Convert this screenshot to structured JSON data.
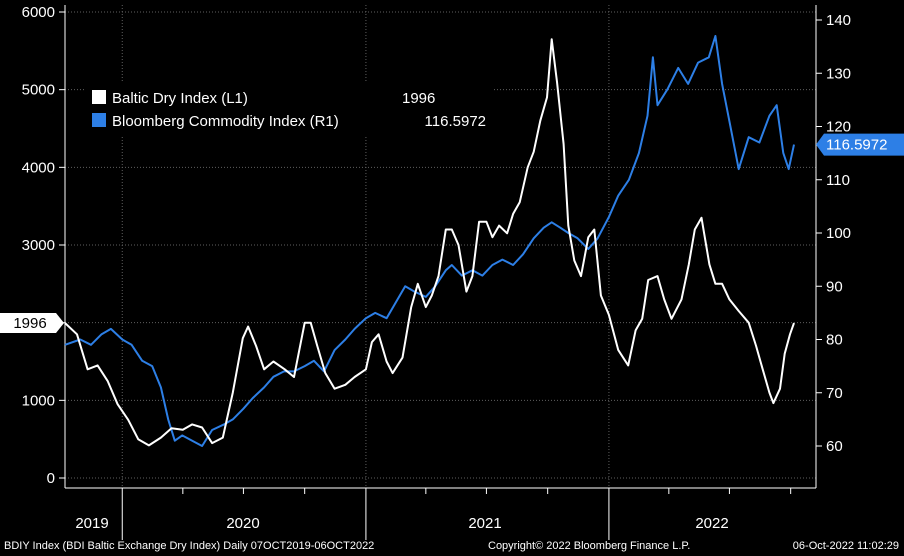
{
  "chart_data": {
    "type": "line",
    "x_range": [
      "2019-10-07",
      "2022-10-06"
    ],
    "y_left": {
      "ticks": [
        "0",
        "1000",
        "2000",
        "3000",
        "4000",
        "5000",
        "6000"
      ],
      "ylim": [
        0,
        6000
      ]
    },
    "y_right": {
      "ticks": [
        "60",
        "70",
        "80",
        "90",
        "100",
        "110",
        "120",
        "130",
        "140"
      ],
      "ylim": [
        53,
        141
      ]
    },
    "years": [
      "2019",
      "2020",
      "2021",
      "2022"
    ],
    "grid": true,
    "legend_position": "top-left",
    "series": [
      {
        "name": "Baltic Dry Index (L1)",
        "last_label": "1996",
        "color": "#ffffff",
        "axis": "left",
        "points": [
          [
            "2019-10-07",
            1996
          ],
          [
            "2019-10-25",
            1850
          ],
          [
            "2019-11-10",
            1400
          ],
          [
            "2019-11-25",
            1450
          ],
          [
            "2019-12-10",
            1250
          ],
          [
            "2019-12-25",
            950
          ],
          [
            "2020-01-10",
            750
          ],
          [
            "2020-01-25",
            500
          ],
          [
            "2020-02-10",
            420
          ],
          [
            "2020-02-28",
            520
          ],
          [
            "2020-03-15",
            640
          ],
          [
            "2020-04-01",
            620
          ],
          [
            "2020-04-15",
            690
          ],
          [
            "2020-04-30",
            650
          ],
          [
            "2020-05-15",
            450
          ],
          [
            "2020-05-31",
            520
          ],
          [
            "2020-06-15",
            1100
          ],
          [
            "2020-06-30",
            1800
          ],
          [
            "2020-07-08",
            1950
          ],
          [
            "2020-07-20",
            1700
          ],
          [
            "2020-08-01",
            1400
          ],
          [
            "2020-08-15",
            1500
          ],
          [
            "2020-09-01",
            1400
          ],
          [
            "2020-09-15",
            1300
          ],
          [
            "2020-10-01",
            2000
          ],
          [
            "2020-10-10",
            2000
          ],
          [
            "2020-10-20",
            1700
          ],
          [
            "2020-11-01",
            1350
          ],
          [
            "2020-11-15",
            1150
          ],
          [
            "2020-12-01",
            1200
          ],
          [
            "2020-12-15",
            1300
          ],
          [
            "2021-01-01",
            1400
          ],
          [
            "2021-01-10",
            1750
          ],
          [
            "2021-01-20",
            1850
          ],
          [
            "2021-02-01",
            1500
          ],
          [
            "2021-02-10",
            1350
          ],
          [
            "2021-02-25",
            1550
          ],
          [
            "2021-03-10",
            2200
          ],
          [
            "2021-03-20",
            2500
          ],
          [
            "2021-04-01",
            2200
          ],
          [
            "2021-04-10",
            2350
          ],
          [
            "2021-04-20",
            2600
          ],
          [
            "2021-05-01",
            3200
          ],
          [
            "2021-05-10",
            3200
          ],
          [
            "2021-05-20",
            3000
          ],
          [
            "2021-06-01",
            2400
          ],
          [
            "2021-06-10",
            2600
          ],
          [
            "2021-06-20",
            3300
          ],
          [
            "2021-07-01",
            3300
          ],
          [
            "2021-07-10",
            3100
          ],
          [
            "2021-07-20",
            3250
          ],
          [
            "2021-08-01",
            3150
          ],
          [
            "2021-08-10",
            3400
          ],
          [
            "2021-08-20",
            3550
          ],
          [
            "2021-09-01",
            4000
          ],
          [
            "2021-09-10",
            4200
          ],
          [
            "2021-09-20",
            4600
          ],
          [
            "2021-09-30",
            4900
          ],
          [
            "2021-10-07",
            5650
          ],
          [
            "2021-10-15",
            5100
          ],
          [
            "2021-10-25",
            4300
          ],
          [
            "2021-11-01",
            3250
          ],
          [
            "2021-11-10",
            2800
          ],
          [
            "2021-11-20",
            2600
          ],
          [
            "2021-12-01",
            3100
          ],
          [
            "2021-12-10",
            3200
          ],
          [
            "2021-12-20",
            2350
          ],
          [
            "2022-01-01",
            2100
          ],
          [
            "2022-01-15",
            1650
          ],
          [
            "2022-01-30",
            1450
          ],
          [
            "2022-02-10",
            1900
          ],
          [
            "2022-02-20",
            2050
          ],
          [
            "2022-03-01",
            2550
          ],
          [
            "2022-03-15",
            2600
          ],
          [
            "2022-03-25",
            2300
          ],
          [
            "2022-04-05",
            2050
          ],
          [
            "2022-04-20",
            2300
          ],
          [
            "2022-05-01",
            2750
          ],
          [
            "2022-05-10",
            3200
          ],
          [
            "2022-05-20",
            3350
          ],
          [
            "2022-06-01",
            2750
          ],
          [
            "2022-06-10",
            2500
          ],
          [
            "2022-06-20",
            2500
          ],
          [
            "2022-07-01",
            2300
          ],
          [
            "2022-07-15",
            2150
          ],
          [
            "2022-07-30",
            2000
          ],
          [
            "2022-08-10",
            1700
          ],
          [
            "2022-08-20",
            1400
          ],
          [
            "2022-08-30",
            1100
          ],
          [
            "2022-09-05",
            965
          ],
          [
            "2022-09-15",
            1150
          ],
          [
            "2022-09-22",
            1600
          ],
          [
            "2022-09-30",
            1850
          ],
          [
            "2022-10-06",
            1996
          ]
        ]
      },
      {
        "name": "Bloomberg Commodity Index (R1)",
        "last_label": "116.5972",
        "color": "#2d7fe6",
        "axis": "right",
        "points": [
          [
            "2019-10-07",
            79
          ],
          [
            "2019-10-30",
            80
          ],
          [
            "2019-11-15",
            79
          ],
          [
            "2019-12-01",
            81
          ],
          [
            "2019-12-15",
            82
          ],
          [
            "2020-01-01",
            80
          ],
          [
            "2020-01-15",
            79
          ],
          [
            "2020-01-31",
            76
          ],
          [
            "2020-02-15",
            75
          ],
          [
            "2020-02-28",
            71
          ],
          [
            "2020-03-10",
            65
          ],
          [
            "2020-03-20",
            61
          ],
          [
            "2020-03-31",
            62
          ],
          [
            "2020-04-15",
            61
          ],
          [
            "2020-04-30",
            60
          ],
          [
            "2020-05-15",
            63
          ],
          [
            "2020-06-01",
            64
          ],
          [
            "2020-06-15",
            65
          ],
          [
            "2020-07-01",
            67
          ],
          [
            "2020-07-15",
            69
          ],
          [
            "2020-08-01",
            71
          ],
          [
            "2020-08-15",
            73
          ],
          [
            "2020-08-31",
            74
          ],
          [
            "2020-09-15",
            74
          ],
          [
            "2020-10-01",
            75
          ],
          [
            "2020-10-15",
            76
          ],
          [
            "2020-10-30",
            74
          ],
          [
            "2020-11-15",
            78
          ],
          [
            "2020-12-01",
            80
          ],
          [
            "2020-12-15",
            82
          ],
          [
            "2021-01-01",
            84
          ],
          [
            "2021-01-15",
            85
          ],
          [
            "2021-02-01",
            84
          ],
          [
            "2021-02-15",
            87
          ],
          [
            "2021-03-01",
            90
          ],
          [
            "2021-03-15",
            89
          ],
          [
            "2021-04-01",
            88
          ],
          [
            "2021-04-15",
            90
          ],
          [
            "2021-05-01",
            93
          ],
          [
            "2021-05-10",
            94
          ],
          [
            "2021-05-25",
            92
          ],
          [
            "2021-06-10",
            93
          ],
          [
            "2021-06-25",
            92
          ],
          [
            "2021-07-10",
            94
          ],
          [
            "2021-07-25",
            95
          ],
          [
            "2021-08-10",
            94
          ],
          [
            "2021-08-25",
            96
          ],
          [
            "2021-09-10",
            99
          ],
          [
            "2021-09-25",
            101
          ],
          [
            "2021-10-07",
            102
          ],
          [
            "2021-10-20",
            101
          ],
          [
            "2021-11-01",
            100
          ],
          [
            "2021-11-15",
            99
          ],
          [
            "2021-12-01",
            97
          ],
          [
            "2021-12-15",
            99
          ],
          [
            "2022-01-01",
            103
          ],
          [
            "2022-01-15",
            107
          ],
          [
            "2022-01-31",
            110
          ],
          [
            "2022-02-15",
            115
          ],
          [
            "2022-02-28",
            122
          ],
          [
            "2022-03-08",
            133
          ],
          [
            "2022-03-15",
            124
          ],
          [
            "2022-03-30",
            127
          ],
          [
            "2022-04-15",
            131
          ],
          [
            "2022-04-30",
            128
          ],
          [
            "2022-05-15",
            132
          ],
          [
            "2022-05-31",
            133
          ],
          [
            "2022-06-10",
            137
          ],
          [
            "2022-06-20",
            128
          ],
          [
            "2022-07-01",
            121
          ],
          [
            "2022-07-15",
            112
          ],
          [
            "2022-07-30",
            118
          ],
          [
            "2022-08-15",
            117
          ],
          [
            "2022-08-30",
            122
          ],
          [
            "2022-09-10",
            124
          ],
          [
            "2022-09-20",
            115
          ],
          [
            "2022-09-28",
            112
          ],
          [
            "2022-10-06",
            116.6
          ]
        ]
      }
    ]
  },
  "footer": {
    "left": "BDIY Index (BDI Baltic Exchange Dry Index)  Daily 07OCT2019-06OCT2022",
    "center": "Copyright© 2022 Bloomberg Finance L.P.",
    "right": "06-Oct-2022 11:02:29"
  },
  "colors": {
    "background": "#000000",
    "bdi": "#ffffff",
    "bcom": "#2d7fe6",
    "grid": "#5f5f5f"
  }
}
